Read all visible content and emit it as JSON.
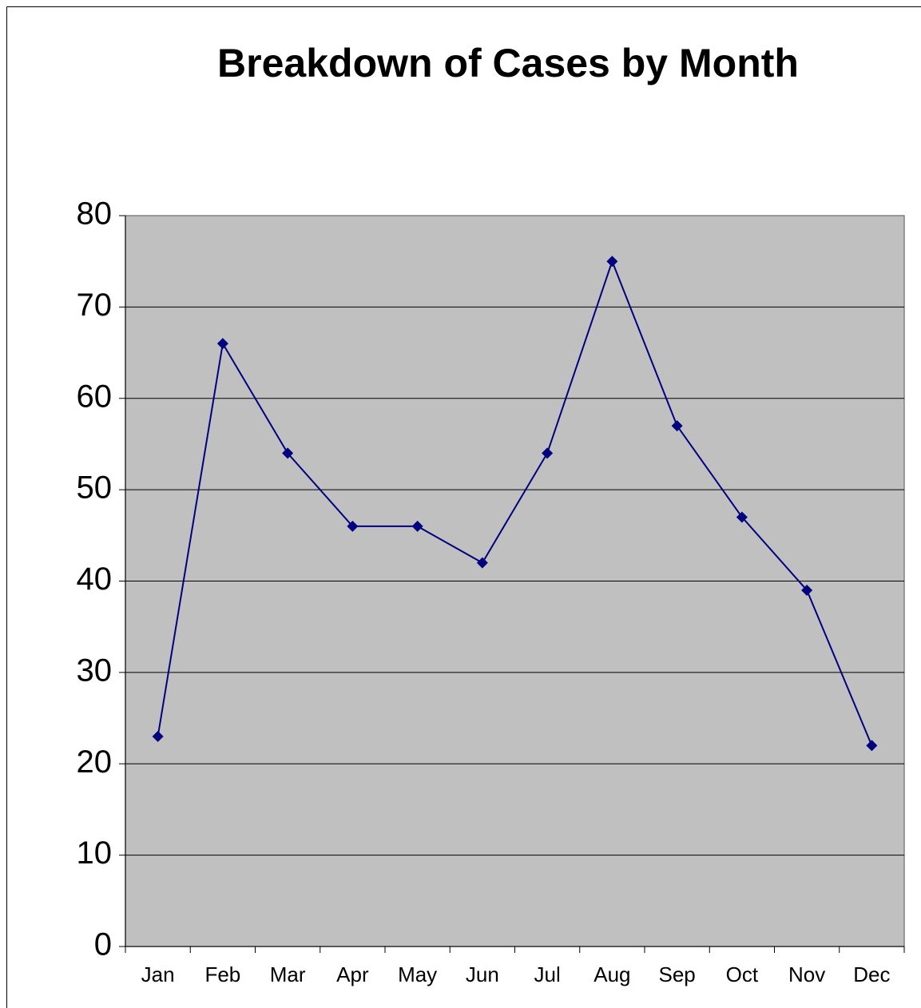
{
  "chart_data": {
    "type": "line",
    "title": "Breakdown of Cases by Month",
    "categories": [
      "Jan",
      "Feb",
      "Mar",
      "Apr",
      "May",
      "Jun",
      "Jul",
      "Aug",
      "Sep",
      "Oct",
      "Nov",
      "Dec"
    ],
    "series": [
      {
        "color": "#000080",
        "values": [
          23,
          66,
          54,
          46,
          46,
          42,
          54,
          75,
          57,
          47,
          39,
          22
        ]
      }
    ],
    "ylim": [
      0,
      80
    ],
    "yticks": [
      0,
      10,
      20,
      30,
      40,
      50,
      60,
      70,
      80
    ],
    "grid": true
  }
}
